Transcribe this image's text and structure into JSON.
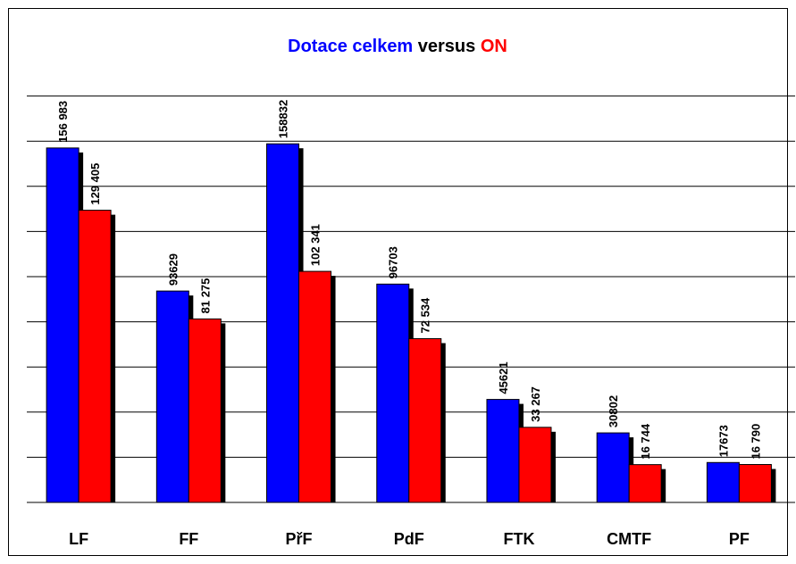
{
  "chart_data": {
    "type": "bar",
    "title": [
      "Dotace celkem",
      "versus",
      "ON"
    ],
    "title_color": "#000000",
    "categories": [
      "LF",
      "FF",
      "PřF",
      "PdF",
      "FTK",
      "CMTF",
      "PF"
    ],
    "series": [
      {
        "color": "#0000ff",
        "values": [
          156983,
          93629,
          158832,
          96703,
          45621,
          30802,
          17673
        ],
        "value_labels": [
          "156 983",
          "93629",
          "158832",
          "96703",
          "45621",
          "30802",
          "17673"
        ]
      },
      {
        "color": "#ff0000",
        "values": [
          129405,
          81275,
          102341,
          72534,
          33267,
          16744,
          16790
        ],
        "value_labels": [
          "129 405",
          "81 275",
          "102 341",
          "72 534",
          "33 267",
          "16 744",
          "16 790"
        ]
      }
    ],
    "ylim": [
      0,
      180000
    ],
    "yticks": [
      0,
      20000,
      40000,
      60000,
      80000,
      100000,
      120000,
      140000,
      160000,
      180000
    ],
    "grid": true,
    "shadow": true
  }
}
